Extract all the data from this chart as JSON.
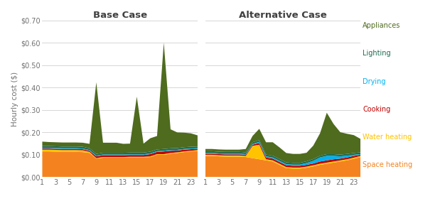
{
  "hours": [
    1,
    2,
    3,
    4,
    5,
    6,
    7,
    8,
    9,
    10,
    11,
    12,
    13,
    14,
    15,
    16,
    17,
    18,
    19,
    20,
    21,
    22,
    23,
    24
  ],
  "xtick_labels": [
    "1",
    "3",
    "5",
    "7",
    "9",
    "11",
    "13",
    "15",
    "17",
    "19",
    "21",
    "23"
  ],
  "xtick_positions": [
    1,
    3,
    5,
    7,
    9,
    11,
    13,
    15,
    17,
    19,
    21,
    23
  ],
  "colors": {
    "space_heating": "#F4831F",
    "water_heating": "#FFC300",
    "cooking": "#C00000",
    "drying": "#00B0F0",
    "lighting": "#1F6B50",
    "appliances": "#4E6B1E"
  },
  "legend_labels": [
    "Appliances",
    "Lighting",
    "Drying",
    "Cooking",
    "Water heating",
    "Space heating"
  ],
  "legend_colors": [
    "#4E6B1E",
    "#1F6B50",
    "#00B0F0",
    "#C00000",
    "#FFC300",
    "#F4831F"
  ],
  "base": {
    "title": "Base Case",
    "space_heating": [
      0.115,
      0.115,
      0.114,
      0.113,
      0.113,
      0.113,
      0.112,
      0.108,
      0.083,
      0.087,
      0.087,
      0.087,
      0.087,
      0.088,
      0.088,
      0.088,
      0.09,
      0.1,
      0.1,
      0.105,
      0.108,
      0.112,
      0.115,
      0.116
    ],
    "water_heating": [
      0.008,
      0.008,
      0.008,
      0.008,
      0.008,
      0.008,
      0.008,
      0.005,
      0.002,
      0.003,
      0.003,
      0.003,
      0.003,
      0.003,
      0.003,
      0.003,
      0.003,
      0.003,
      0.003,
      0.003,
      0.003,
      0.003,
      0.003,
      0.005
    ],
    "cooking": [
      0.005,
      0.005,
      0.005,
      0.005,
      0.005,
      0.005,
      0.005,
      0.005,
      0.008,
      0.008,
      0.008,
      0.008,
      0.008,
      0.008,
      0.008,
      0.008,
      0.01,
      0.01,
      0.012,
      0.01,
      0.008,
      0.008,
      0.007,
      0.005
    ],
    "drying": [
      0.003,
      0.003,
      0.003,
      0.003,
      0.003,
      0.003,
      0.003,
      0.003,
      0.003,
      0.003,
      0.003,
      0.003,
      0.003,
      0.003,
      0.003,
      0.003,
      0.003,
      0.003,
      0.003,
      0.003,
      0.003,
      0.003,
      0.003,
      0.003
    ],
    "lighting": [
      0.008,
      0.008,
      0.008,
      0.008,
      0.008,
      0.008,
      0.008,
      0.008,
      0.008,
      0.008,
      0.008,
      0.008,
      0.008,
      0.008,
      0.008,
      0.008,
      0.008,
      0.008,
      0.008,
      0.008,
      0.008,
      0.008,
      0.008,
      0.008
    ],
    "appliances": [
      0.02,
      0.018,
      0.018,
      0.018,
      0.018,
      0.018,
      0.018,
      0.02,
      0.32,
      0.045,
      0.045,
      0.045,
      0.04,
      0.04,
      0.25,
      0.04,
      0.06,
      0.06,
      0.475,
      0.085,
      0.07,
      0.065,
      0.06,
      0.05
    ]
  },
  "alt": {
    "title": "Alternative Case",
    "space_heating": [
      0.095,
      0.095,
      0.093,
      0.092,
      0.092,
      0.092,
      0.09,
      0.085,
      0.08,
      0.075,
      0.07,
      0.055,
      0.04,
      0.038,
      0.038,
      0.042,
      0.048,
      0.055,
      0.06,
      0.065,
      0.07,
      0.075,
      0.082,
      0.09
    ],
    "water_heating": [
      0.005,
      0.005,
      0.005,
      0.005,
      0.005,
      0.005,
      0.005,
      0.055,
      0.065,
      0.005,
      0.005,
      0.005,
      0.005,
      0.005,
      0.005,
      0.005,
      0.005,
      0.005,
      0.005,
      0.005,
      0.005,
      0.005,
      0.005,
      0.005
    ],
    "cooking": [
      0.005,
      0.005,
      0.005,
      0.005,
      0.005,
      0.005,
      0.005,
      0.005,
      0.008,
      0.008,
      0.008,
      0.008,
      0.008,
      0.008,
      0.008,
      0.008,
      0.008,
      0.01,
      0.01,
      0.01,
      0.008,
      0.008,
      0.008,
      0.005
    ],
    "drying": [
      0.003,
      0.003,
      0.003,
      0.003,
      0.003,
      0.003,
      0.003,
      0.003,
      0.005,
      0.005,
      0.005,
      0.005,
      0.005,
      0.005,
      0.005,
      0.008,
      0.012,
      0.018,
      0.02,
      0.015,
      0.01,
      0.008,
      0.005,
      0.003
    ],
    "lighting": [
      0.008,
      0.008,
      0.008,
      0.008,
      0.008,
      0.008,
      0.008,
      0.008,
      0.008,
      0.008,
      0.008,
      0.008,
      0.008,
      0.008,
      0.008,
      0.008,
      0.008,
      0.008,
      0.008,
      0.008,
      0.008,
      0.008,
      0.008,
      0.008
    ],
    "appliances": [
      0.01,
      0.01,
      0.01,
      0.01,
      0.01,
      0.01,
      0.015,
      0.028,
      0.05,
      0.055,
      0.06,
      0.052,
      0.042,
      0.04,
      0.04,
      0.038,
      0.06,
      0.1,
      0.185,
      0.135,
      0.1,
      0.09,
      0.08,
      0.06
    ]
  },
  "ylim": [
    0.0,
    0.7
  ],
  "yticks": [
    0.0,
    0.1,
    0.2,
    0.3,
    0.4,
    0.5,
    0.6,
    0.7
  ],
  "ytick_labels": [
    "$0.00",
    "$0.10",
    "$0.20",
    "$0.30",
    "$0.40",
    "$0.50",
    "$0.60",
    "$0.70"
  ],
  "ylabel": "Hourly cost ($)",
  "bg_color": "#FFFFFF",
  "grid_color": "#D0D0D0",
  "title_color": "#404040",
  "tick_color": "#707070"
}
